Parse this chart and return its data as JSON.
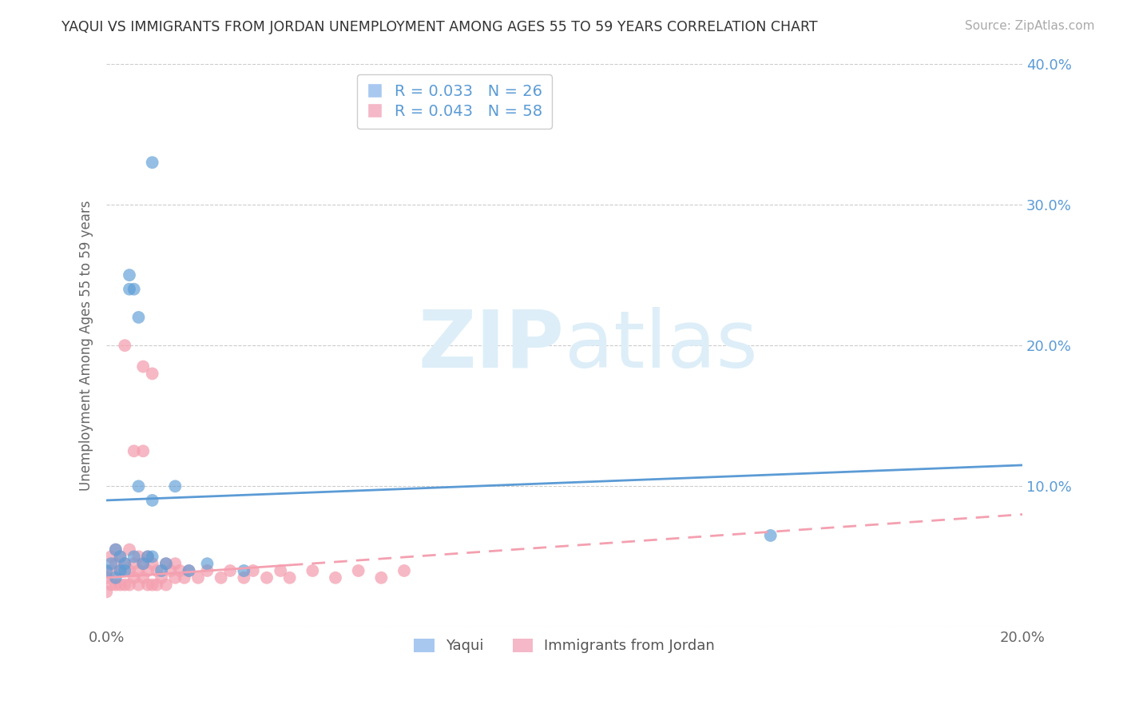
{
  "title": "YAQUI VS IMMIGRANTS FROM JORDAN UNEMPLOYMENT AMONG AGES 55 TO 59 YEARS CORRELATION CHART",
  "source": "Source: ZipAtlas.com",
  "ylabel": "Unemployment Among Ages 55 to 59 years",
  "xlim": [
    0.0,
    0.2
  ],
  "ylim": [
    0.0,
    0.4
  ],
  "xticks": [
    0.0,
    0.05,
    0.1,
    0.15,
    0.2
  ],
  "yticks": [
    0.0,
    0.1,
    0.2,
    0.3,
    0.4
  ],
  "blue_color": "#5b9bd5",
  "pink_color": "#f4a0b0",
  "legend_box_color": "#a8c8f0",
  "legend_pink_color": "#f4b8c8",
  "yaqui_x": [
    0.0,
    0.001,
    0.002,
    0.002,
    0.003,
    0.003,
    0.004,
    0.004,
    0.005,
    0.005,
    0.006,
    0.006,
    0.007,
    0.007,
    0.008,
    0.009,
    0.01,
    0.01,
    0.012,
    0.013,
    0.015,
    0.018,
    0.022,
    0.03,
    0.145,
    0.01
  ],
  "yaqui_y": [
    0.04,
    0.045,
    0.035,
    0.055,
    0.04,
    0.05,
    0.04,
    0.045,
    0.24,
    0.25,
    0.05,
    0.24,
    0.22,
    0.1,
    0.045,
    0.05,
    0.09,
    0.05,
    0.04,
    0.045,
    0.1,
    0.04,
    0.045,
    0.04,
    0.065,
    0.33
  ],
  "jordan_x": [
    0.0,
    0.0,
    0.001,
    0.001,
    0.001,
    0.002,
    0.002,
    0.002,
    0.003,
    0.003,
    0.003,
    0.004,
    0.004,
    0.005,
    0.005,
    0.005,
    0.006,
    0.006,
    0.006,
    0.007,
    0.007,
    0.007,
    0.008,
    0.008,
    0.008,
    0.009,
    0.009,
    0.009,
    0.01,
    0.01,
    0.01,
    0.011,
    0.011,
    0.012,
    0.013,
    0.013,
    0.014,
    0.015,
    0.015,
    0.016,
    0.017,
    0.018,
    0.02,
    0.022,
    0.025,
    0.027,
    0.03,
    0.032,
    0.035,
    0.038,
    0.04,
    0.045,
    0.05,
    0.055,
    0.06,
    0.065,
    0.004,
    0.008
  ],
  "jordan_y": [
    0.025,
    0.035,
    0.03,
    0.04,
    0.05,
    0.03,
    0.045,
    0.055,
    0.03,
    0.04,
    0.05,
    0.03,
    0.045,
    0.03,
    0.04,
    0.055,
    0.125,
    0.035,
    0.045,
    0.03,
    0.04,
    0.05,
    0.125,
    0.035,
    0.045,
    0.03,
    0.04,
    0.05,
    0.03,
    0.18,
    0.045,
    0.03,
    0.04,
    0.035,
    0.03,
    0.045,
    0.04,
    0.035,
    0.045,
    0.04,
    0.035,
    0.04,
    0.035,
    0.04,
    0.035,
    0.04,
    0.035,
    0.04,
    0.035,
    0.04,
    0.035,
    0.04,
    0.035,
    0.04,
    0.035,
    0.04,
    0.2,
    0.185
  ]
}
